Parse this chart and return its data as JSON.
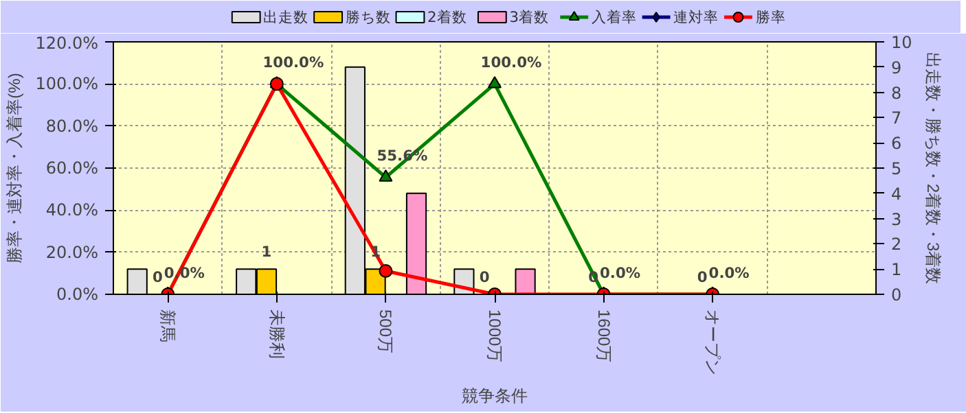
{
  "chart_data": {
    "type": "bar",
    "xlabel": "競争条件",
    "ylabel": "勝率・連対率・入着率(%)",
    "y2label": "出走数・勝ち数・2着数・3着数",
    "categories": [
      "新馬",
      "未勝利",
      "500万",
      "1000万",
      "1600万",
      "オープン",
      null
    ],
    "ylim": [
      0,
      120
    ],
    "yticks": [
      {
        "value": 0,
        "label": "0.0%"
      },
      {
        "value": 20,
        "label": "20.0%"
      },
      {
        "value": 40,
        "label": "40.0%"
      },
      {
        "value": 60,
        "label": "60.0%"
      },
      {
        "value": 80,
        "label": "80.0%"
      },
      {
        "value": 100,
        "label": "100.0%"
      },
      {
        "value": 120,
        "label": "120.0%"
      }
    ],
    "y2lim": [
      0,
      10
    ],
    "y2ticks": [
      0,
      1,
      2,
      3,
      4,
      5,
      6,
      7,
      8,
      9,
      10
    ],
    "grid": true,
    "legend": "top",
    "series": [
      {
        "name": "出走数",
        "axis": "y2",
        "color": "#e0e0e0",
        "values": [
          1,
          1,
          9,
          1,
          0,
          0,
          null
        ]
      },
      {
        "name": "勝ち数",
        "axis": "y2",
        "color": "#ffcc00",
        "values": [
          0,
          1,
          1,
          0,
          0,
          0,
          null
        ],
        "value_labels": [
          "0",
          "1",
          "1",
          "0",
          "0",
          "0",
          null
        ]
      },
      {
        "name": "2着数",
        "axis": "y2",
        "color": "#ccffff",
        "values": [
          0,
          0,
          0,
          0,
          0,
          0,
          null
        ]
      },
      {
        "name": "3着数",
        "axis": "y2",
        "color": "#ff99cc",
        "values": [
          0,
          0,
          4,
          1,
          0,
          0,
          null
        ]
      },
      {
        "name": "入着率",
        "type": "line",
        "color": "#008000",
        "marker": "triangle",
        "values": [
          0,
          100,
          55.6,
          100,
          0,
          0,
          null
        ],
        "value_labels": [
          "0.0%",
          "100.0%",
          "55.6%",
          "100.0%",
          "0.0%",
          "0.0%",
          null
        ]
      },
      {
        "name": "連対率",
        "type": "line",
        "color": "#000080",
        "marker": "diamond",
        "values": [
          null,
          null,
          null,
          null,
          null,
          null,
          null
        ]
      },
      {
        "name": "勝率",
        "type": "line",
        "color": "#ff0000",
        "marker": "circle",
        "values": [
          0,
          100,
          11.1,
          0,
          0,
          0,
          null
        ]
      }
    ]
  }
}
